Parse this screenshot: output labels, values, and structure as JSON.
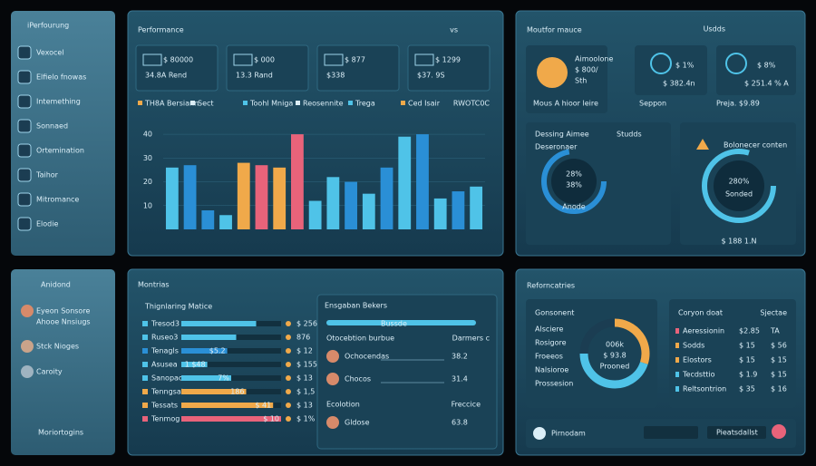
{
  "sidebar": {
    "title": "iPerfourung",
    "items": [
      "Vexocel",
      "Elfielo fnowas",
      "Intemething",
      "Sonnaed",
      "Ortemination",
      "Taihor",
      "Mitromance",
      "Elodie"
    ]
  },
  "performance": {
    "title": "Performance",
    "header": "vs",
    "stats": [
      [
        "$ 80000",
        "34.8A Rend"
      ],
      [
        "$ 000",
        "13.3 Rand"
      ],
      [
        "$ 877",
        "$338"
      ],
      [
        "$ 1299",
        "$37. 9S"
      ]
    ],
    "legend": [
      "TH8A Bersiann",
      "Sect",
      "Toohl Mniga",
      "Reosennite",
      "Trega",
      "Ced Isair"
    ],
    "right_label": "RWOTC0C",
    "chart": {
      "type": "bar",
      "values": [
        26,
        27,
        8,
        6,
        28,
        27,
        26,
        40,
        12,
        22,
        20,
        15,
        26,
        39,
        40,
        13,
        16,
        18
      ],
      "colors": [
        "#4fc3e8",
        "#2a8fd6",
        "#2a8fd6",
        "#4fc3e8",
        "#f0a94a",
        "#e8637a",
        "#f0a94a",
        "#e8637a",
        "#4fc3e8",
        "#4fc3e8",
        "#2a8fd6",
        "#4fc3e8",
        "#2a8fd6",
        "#4fc3e8",
        "#2a8fd6",
        "#4fc3e8",
        "#2a8fd6",
        "#4fc3e8"
      ],
      "ylim": [
        0,
        45
      ],
      "yticks": [
        10,
        20,
        30,
        40
      ]
    }
  },
  "monitor": {
    "title": "Moutfor mauce",
    "header": "Usdds",
    "profile": [
      "Aimoolone",
      "$ 800/",
      "Sth"
    ],
    "cards": [
      [
        "$ 1%",
        "$ 382.4n"
      ],
      [
        "$ 8%",
        "$ 251.4 % A"
      ]
    ],
    "footer": [
      "Mous A hioor leire",
      "Seppon",
      "Preja. $9.89"
    ],
    "gauge_card": {
      "title": "Dessing Aimee",
      "sub": "Studds",
      "note": "Deseronaer",
      "lines": [
        "28%",
        "38%",
        "Anode"
      ]
    },
    "balance_card": {
      "title": "Bolonecer conten",
      "lines": [
        "280%",
        "Sonded"
      ],
      "footer": "$ 188 1.N"
    }
  },
  "profiles": {
    "title": "Anidond",
    "items": [
      "Eyeon Sonsore",
      "Ahooe Nnsiugs",
      "Stck Nioges",
      "Caroity"
    ],
    "footer": "Moriortogins"
  },
  "monitrias": {
    "title": "Montrias",
    "subtitle": "Thignlaring Matice",
    "rows": [
      {
        "label": "Tresod3",
        "value": 75,
        "inside": "",
        "right": "$ 256"
      },
      {
        "label": "Ruseo3",
        "value": 55,
        "inside": "",
        "right": "876"
      },
      {
        "label": "Tenagls",
        "value": 46,
        "inside": "$5.2",
        "right": "$ 12"
      },
      {
        "label": "Asusea",
        "value": 26,
        "inside": "1 $48",
        "right": "$ 155"
      },
      {
        "label": "Sanopac",
        "value": 50,
        "inside": "7%",
        "right": "$ 13"
      },
      {
        "label": "Tenngsat",
        "value": 65,
        "inside": "186",
        "right": "$ 1,5"
      },
      {
        "label": "Tessats",
        "value": 92,
        "inside": "$ 41",
        "right": "$ 13"
      },
      {
        "label": "Tenmog",
        "value": 100,
        "inside": "$ 10",
        "right": "$ 1%"
      }
    ],
    "colors": [
      "#4fc3e8",
      "#4fc3e8",
      "#2a8fd6",
      "#4fc3e8",
      "#4fc3e8",
      "#f0a94a",
      "#f0a94a",
      "#e8637a"
    ],
    "xlim": [
      0,
      100
    ],
    "side": {
      "title": "Ensgaban Bekers",
      "bar_label": "Bussde",
      "head": [
        "Otocebtion burbue",
        "Darmers c"
      ],
      "people": [
        [
          "Ochocendas",
          "38.2"
        ],
        [
          "Chocos",
          "31.4"
        ]
      ],
      "head2": [
        "Ecolotion",
        "Freccice"
      ],
      "last": [
        "Gldose",
        "63.8"
      ]
    }
  },
  "reforn": {
    "title": "Reforncatries",
    "list_title": "Gonsonent",
    "list": [
      "Alsciere",
      "Rosigore",
      "Froeeos",
      "Nalsioroe",
      "Prossesion"
    ],
    "donut": {
      "values": [
        30,
        45,
        25
      ],
      "colors": [
        "#f0a94a",
        "#4fc3e8",
        "#1b3d52"
      ],
      "center": [
        "006k",
        "$ 93.8",
        "Prooned"
      ]
    },
    "table": {
      "head": [
        "Coryon doat",
        "Sjectae"
      ],
      "rows": [
        [
          "Aeressionin",
          "$2.85",
          "TA"
        ],
        [
          "Sodds",
          "$ 15",
          "$ 56"
        ],
        [
          "Elostors",
          "$ 15",
          "$ 15"
        ],
        [
          "Tecdsttio",
          "$ 1.9",
          "$ 15"
        ],
        [
          "Reltsontrion",
          "$ 35",
          "$ 16"
        ]
      ]
    },
    "footer": [
      "Pirnodam",
      "Pieatsdallst"
    ]
  }
}
